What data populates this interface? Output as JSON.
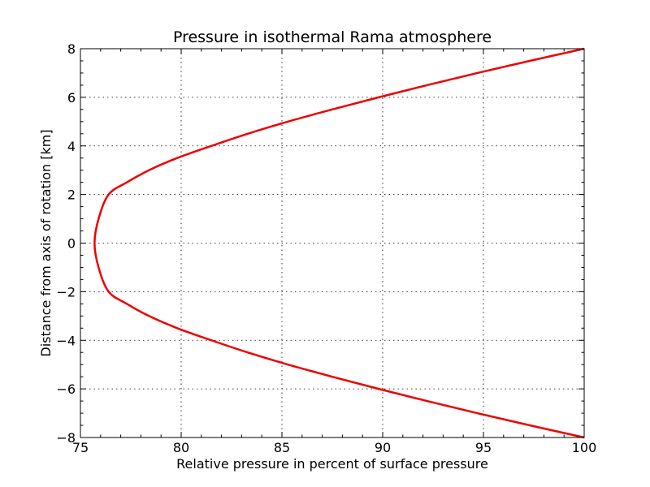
{
  "chart_data": {
    "type": "line",
    "title": "Pressure in isothermal Rama atmosphere",
    "xlabel": "Relative pressure in percent of surface pressure",
    "ylabel": "Distance from axis of rotation [km]",
    "xlim": [
      75,
      100
    ],
    "ylim": [
      -8,
      8
    ],
    "x_ticks": [
      75,
      80,
      85,
      90,
      95,
      100
    ],
    "x_tick_labels": [
      "75",
      "80",
      "85",
      "90",
      "95",
      "100"
    ],
    "y_ticks": [
      -8,
      -6,
      -4,
      -2,
      0,
      2,
      4,
      6,
      8
    ],
    "y_tick_labels": [
      "−8",
      "−6",
      "−4",
      "−2",
      "0",
      "2",
      "4",
      "6",
      "8"
    ],
    "grid": true,
    "series": [
      {
        "color": "#ee0000",
        "x": [
          100.0,
          97.3,
          94.7,
          92.2,
          89.8,
          87.5,
          85.3,
          83.3,
          81.5,
          79.8,
          78.4,
          77.3,
          76.4,
          75.9,
          75.7,
          75.9,
          76.4,
          77.3,
          78.4,
          79.8,
          81.5,
          83.3,
          85.3,
          87.5,
          89.8,
          92.2,
          94.7,
          97.3,
          100.0
        ],
        "y": [
          8.0,
          7.5,
          7.0,
          6.5,
          6.0,
          5.5,
          5.0,
          4.5,
          4.0,
          3.5,
          3.0,
          2.5,
          2.0,
          1.0,
          0.0,
          -1.0,
          -2.0,
          -2.5,
          -3.0,
          -3.5,
          -4.0,
          -4.5,
          -5.0,
          -5.5,
          -6.0,
          -6.5,
          -7.0,
          -7.5,
          -8.0
        ]
      }
    ]
  }
}
